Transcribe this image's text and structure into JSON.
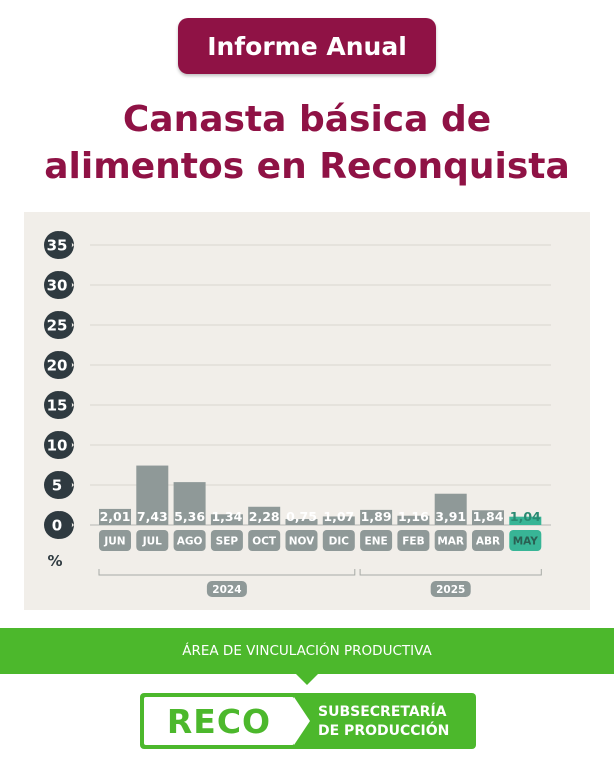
{
  "header": {
    "badge": "Informe Anual",
    "title_line1": "Canasta básica de",
    "title_line2": "alimentos en Reconquista"
  },
  "colors": {
    "brand": "#8f1245",
    "bar": "#8f9998",
    "bar_highlight": "#38b596",
    "panel": "#f1eee9",
    "green": "#4cb82c",
    "marker": "#2f3a40"
  },
  "chart_data": {
    "type": "bar",
    "unit_label": "%",
    "ylim": [
      0,
      35
    ],
    "yticks": [
      0,
      5,
      10,
      15,
      20,
      25,
      30,
      35
    ],
    "categories": [
      "JUN",
      "JUL",
      "AGO",
      "SEP",
      "OCT",
      "NOV",
      "DIC",
      "ENE",
      "FEB",
      "MAR",
      "ABR",
      "MAY"
    ],
    "values": [
      2.01,
      7.43,
      5.36,
      1.34,
      2.28,
      0.75,
      1.07,
      1.89,
      1.16,
      3.91,
      1.84,
      1.04
    ],
    "value_labels": [
      "2,01",
      "7,43",
      "5,36",
      "1,34",
      "2,28",
      "0,75",
      "1,07",
      "1,89",
      "1,16",
      "3,91",
      "1,84",
      "1,04"
    ],
    "highlight_index": 11,
    "year_groups": [
      {
        "label": "2024",
        "from": 0,
        "to": 6
      },
      {
        "label": "2025",
        "from": 7,
        "to": 11
      }
    ],
    "grid": true
  },
  "footer": {
    "area": "ÁREA DE VINCULACIÓN PRODUCTIVA",
    "logo_word": "RECO",
    "logo_line1": "SUBSECRETARÍA",
    "logo_line2": "DE PRODUCCIÓN"
  }
}
